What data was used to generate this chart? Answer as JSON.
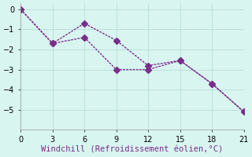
{
  "line1_x": [
    0,
    3,
    6,
    9,
    12,
    15,
    18,
    21
  ],
  "line1_y": [
    0,
    -1.7,
    -0.7,
    -1.55,
    -2.8,
    -2.55,
    -3.7,
    -5.1
  ],
  "line2_x": [
    0,
    3,
    6,
    9,
    12,
    15,
    18,
    21
  ],
  "line2_y": [
    0,
    -1.7,
    -1.4,
    -3.0,
    -3.0,
    -2.55,
    -3.7,
    -5.1
  ],
  "line_color": "#7b2d8b",
  "bg_color": "#d8f5f0",
  "grid_color": "#b8ddd8",
  "xlabel": "Windchill (Refroidissement éolien,°C)",
  "xlim": [
    0,
    21
  ],
  "ylim": [
    -6,
    0.3
  ],
  "xticks": [
    0,
    3,
    6,
    9,
    12,
    15,
    18,
    21
  ],
  "yticks": [
    0,
    -1,
    -2,
    -3,
    -4,
    -5
  ],
  "xlabel_fontsize": 7.5,
  "tick_fontsize": 7,
  "marker_size": 4,
  "linewidth": 1.0
}
